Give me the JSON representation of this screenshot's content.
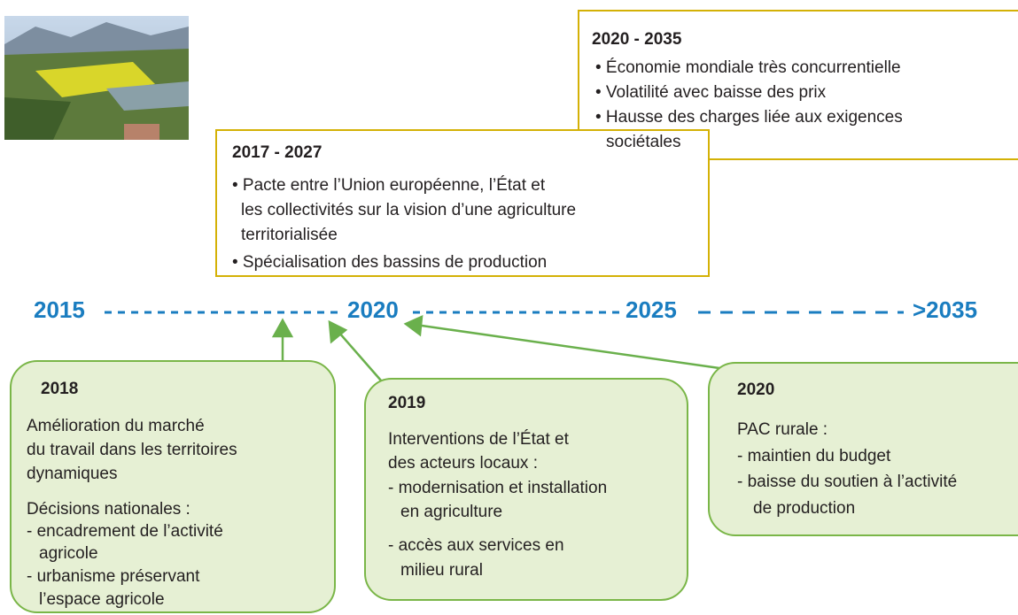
{
  "forecast_boxes": [
    {
      "title": "2020 - 2035",
      "lines": [
        "• Économie mondiale très concurrentielle",
        "• Volatilité avec baisse des prix",
        "• Hausse des charges liée aux exigences",
        "sociétales"
      ]
    },
    {
      "title": "2017 - 2027",
      "lines": [
        "• Pacte entre l’Union européenne, l’État et",
        "les collectivités sur la vision d’une agriculture",
        "territorialisée",
        "• Spécialisation des bassins de production"
      ]
    }
  ],
  "timeline": [
    "2015",
    "2020",
    "2025",
    ">2035"
  ],
  "events": [
    {
      "title": "2018",
      "lines": [
        "Amélioration du marché",
        "du travail dans les territoires",
        "dynamiques",
        "Décisions nationales :",
        "- encadrement de l’activité",
        "agricole",
        "- urbanisme préservant",
        "l’espace agricole"
      ]
    },
    {
      "title": "2019",
      "lines": [
        "Interventions de l’État et",
        "des acteurs locaux :",
        "- modernisation et installation",
        "en agriculture",
        "- accès aux services en",
        "milieu rural"
      ]
    },
    {
      "title": "2020",
      "lines": [
        "PAC rurale :",
        "- maintien du budget",
        "- baisse du soutien à l’activité",
        "de production"
      ]
    }
  ]
}
